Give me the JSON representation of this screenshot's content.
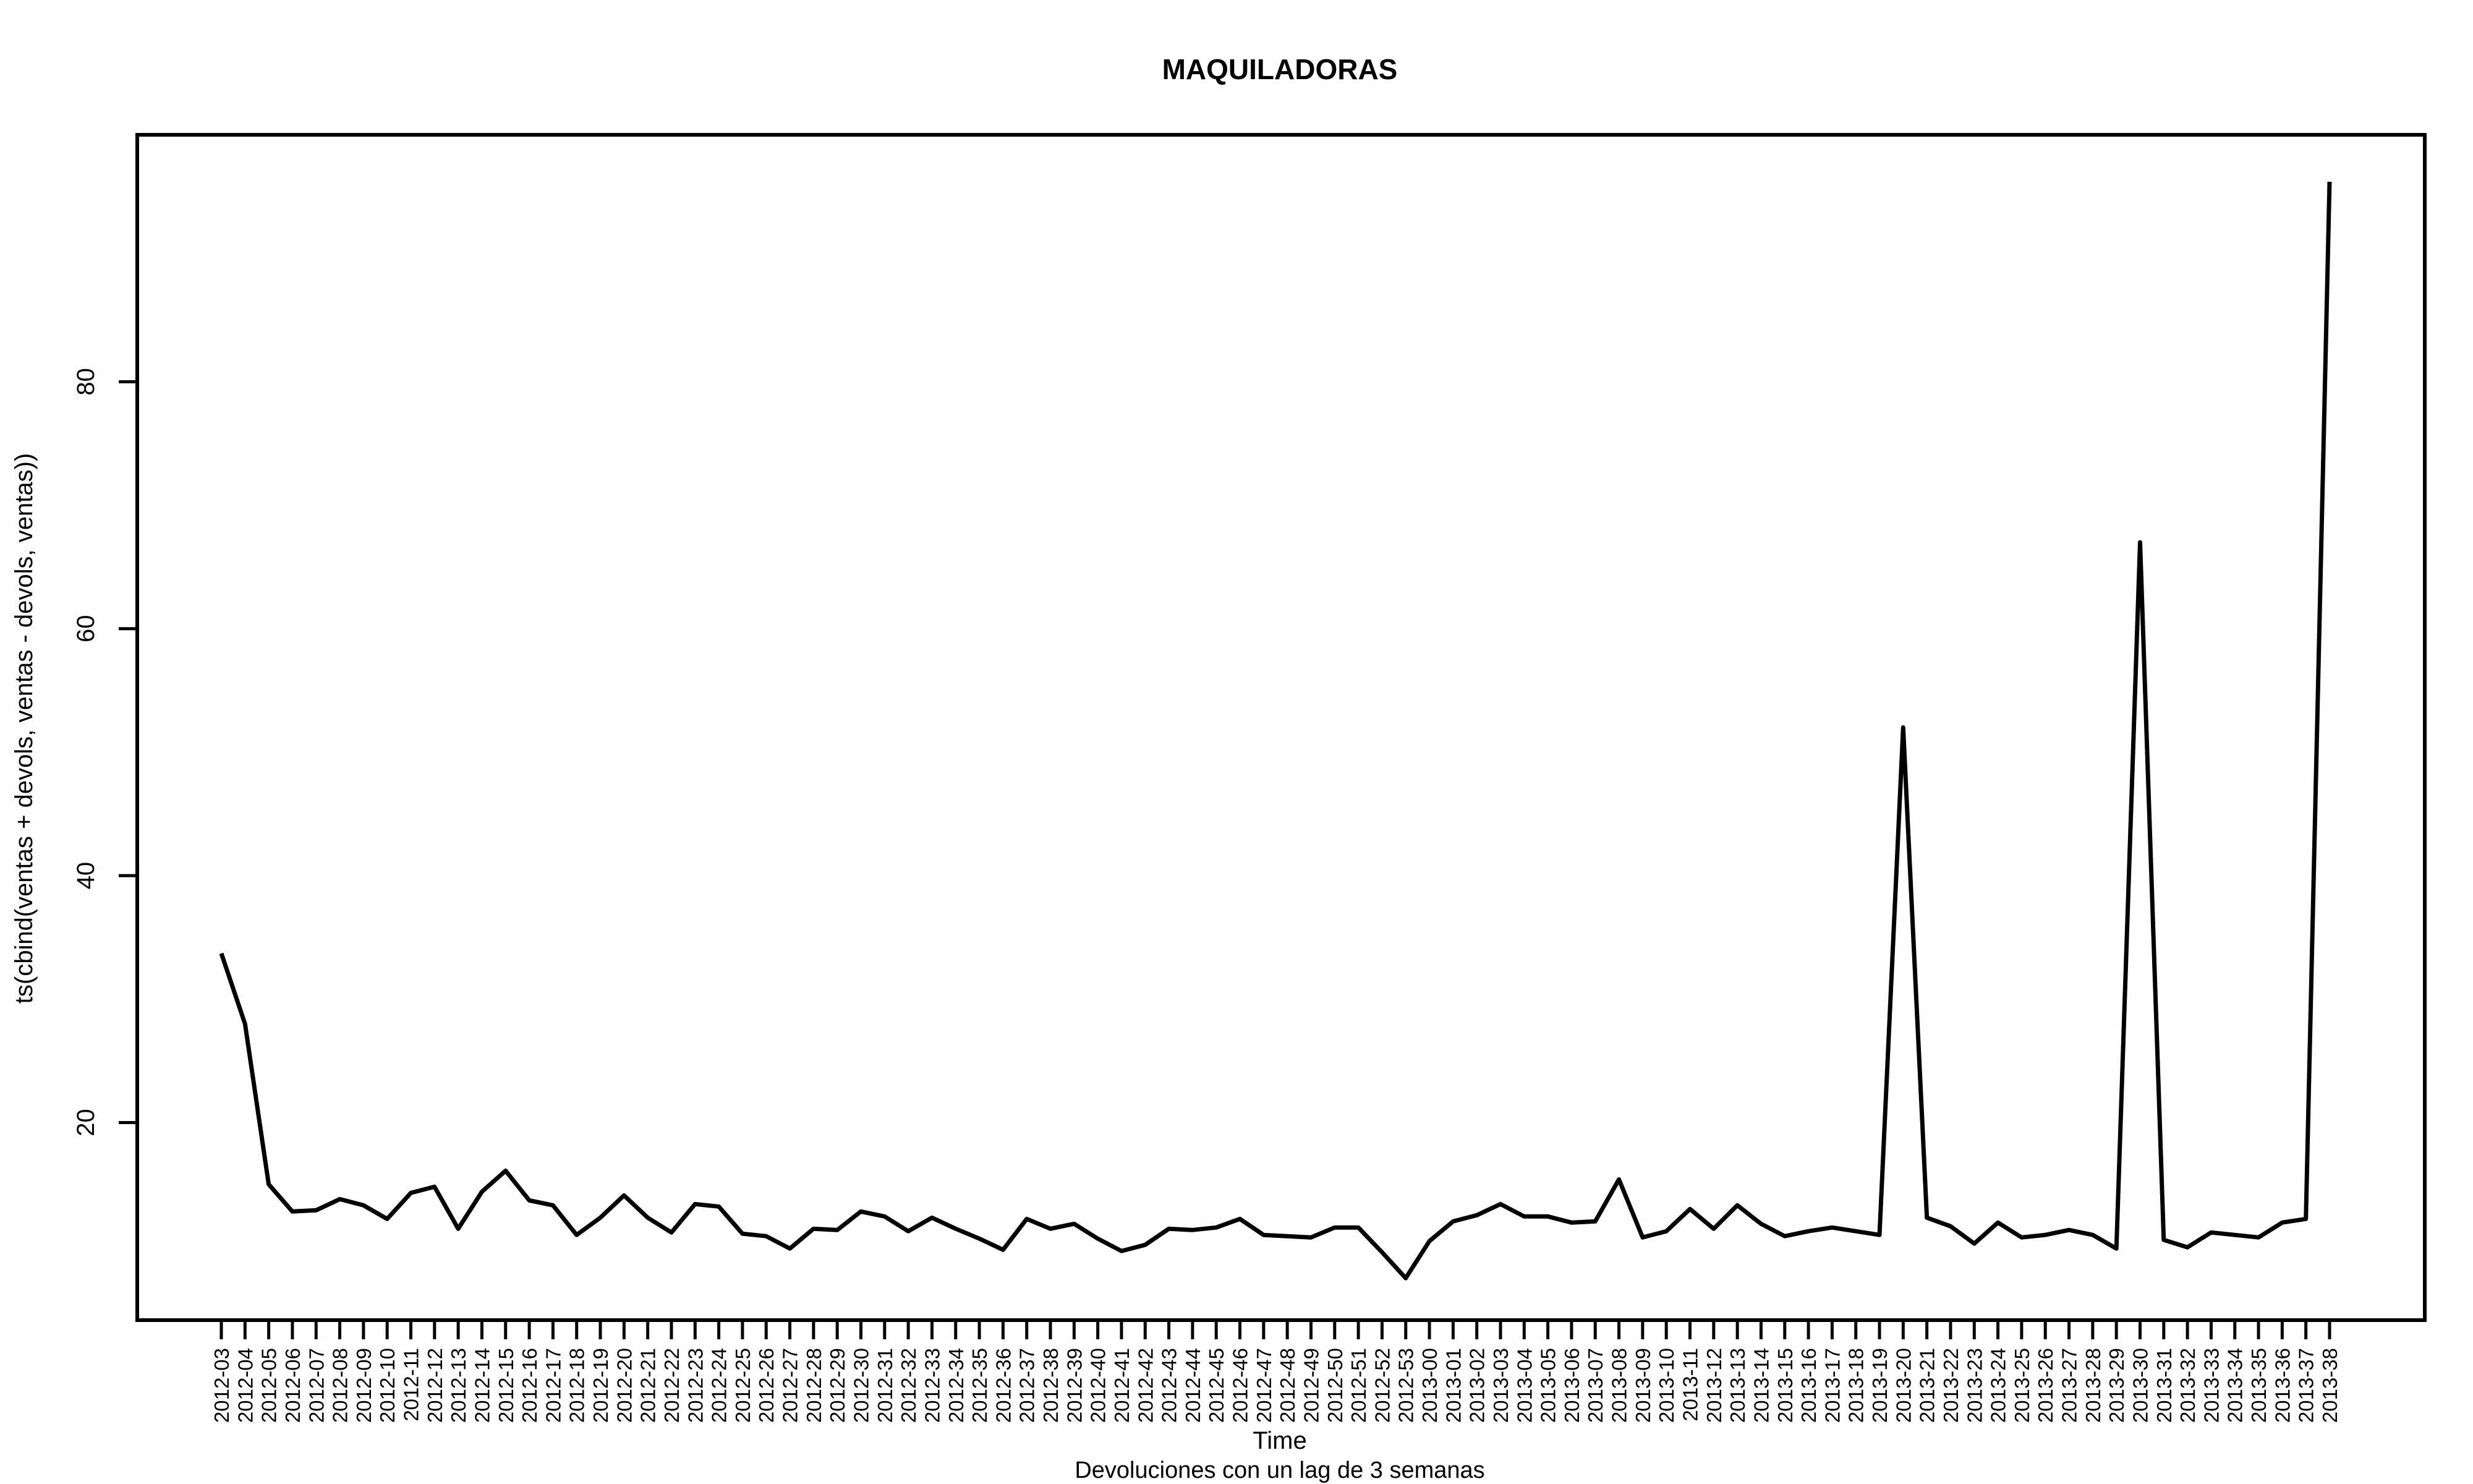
{
  "chart_data": {
    "type": "line",
    "title": "MAQUILADORAS",
    "xlabel": "Time",
    "ylabel": "ts(cbind(ventas + devols, ventas - devols, ventas))",
    "subtitle": "Devoluciones con un lag de 3 semanas",
    "x_range": [
      1,
      91
    ],
    "ylim": [
      4,
      100
    ],
    "yticks": [
      20,
      40,
      60,
      80
    ],
    "grid": false,
    "legend": "none",
    "line_color": "#000000",
    "categories": [
      "2012-03",
      "2012-04",
      "2012-05",
      "2012-06",
      "2012-07",
      "2012-08",
      "2012-09",
      "2012-10",
      "2012-11",
      "2012-12",
      "2012-13",
      "2012-14",
      "2012-15",
      "2012-16",
      "2012-17",
      "2012-18",
      "2012-19",
      "2012-20",
      "2012-21",
      "2012-22",
      "2012-23",
      "2012-24",
      "2012-25",
      "2012-26",
      "2012-27",
      "2012-28",
      "2012-29",
      "2012-30",
      "2012-31",
      "2012-32",
      "2012-33",
      "2012-34",
      "2012-35",
      "2012-36",
      "2012-37",
      "2012-38",
      "2012-39",
      "2012-40",
      "2012-41",
      "2012-42",
      "2012-43",
      "2012-44",
      "2012-45",
      "2012-46",
      "2012-47",
      "2012-48",
      "2012-49",
      "2012-50",
      "2012-51",
      "2012-52",
      "2012-53",
      "2013-00",
      "2013-01",
      "2013-02",
      "2013-03",
      "2013-04",
      "2013-05",
      "2013-06",
      "2013-07",
      "2013-08",
      "2013-09",
      "2013-10",
      "2013-11",
      "2013-12",
      "2013-13",
      "2013-14",
      "2013-15",
      "2013-16",
      "2013-17",
      "2013-18",
      "2013-19",
      "2013-20",
      "2013-21",
      "2013-22",
      "2013-23",
      "2013-24",
      "2013-25",
      "2013-26",
      "2013-27",
      "2013-28",
      "2013-29",
      "2013-30",
      "2013-31",
      "2013-32",
      "2013-33",
      "2013-34",
      "2013-35",
      "2013-36",
      "2013-37",
      "2013-38"
    ],
    "series": [
      {
        "values": [
          33.7,
          28.0,
          15.0,
          12.8,
          12.9,
          13.8,
          13.3,
          12.2,
          14.3,
          14.8,
          11.4,
          14.4,
          16.1,
          13.7,
          13.3,
          10.9,
          12.3,
          14.1,
          12.3,
          11.1,
          13.4,
          13.2,
          11.0,
          10.8,
          9.8,
          11.4,
          11.3,
          12.8,
          12.4,
          11.2,
          12.3,
          11.4,
          10.6,
          9.7,
          12.2,
          11.4,
          11.8,
          10.6,
          9.6,
          10.1,
          11.4,
          11.3,
          11.5,
          12.2,
          10.9,
          10.8,
          10.7,
          11.5,
          11.5,
          9.5,
          7.4,
          10.4,
          12.0,
          12.5,
          13.4,
          12.4,
          12.4,
          11.9,
          12.0,
          15.4,
          10.7,
          11.2,
          13.0,
          11.4,
          13.3,
          11.8,
          10.8,
          11.2,
          11.5,
          11.2,
          10.9,
          52.0,
          12.3,
          11.6,
          10.2,
          11.9,
          10.7,
          10.9,
          11.3,
          10.9,
          9.8,
          67.0,
          10.5,
          9.9,
          11.1,
          10.9,
          10.7,
          11.9,
          12.2,
          96.2
        ]
      }
    ]
  }
}
